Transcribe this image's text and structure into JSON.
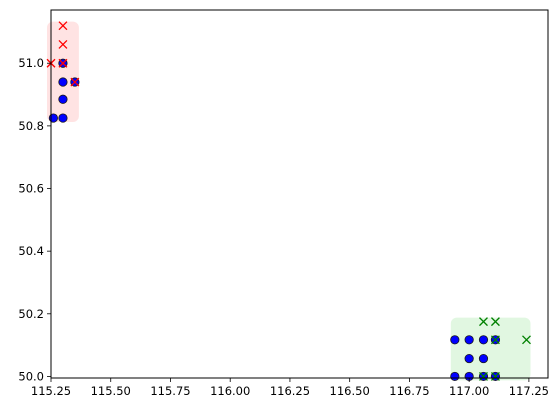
{
  "chart_data": {
    "type": "scatter",
    "title": "",
    "xlabel": "",
    "ylabel": "",
    "xlim": [
      115.25,
      117.33
    ],
    "ylim": [
      49.995,
      51.17
    ],
    "grid": false,
    "x_ticks": [
      115.25,
      115.5,
      115.75,
      116.0,
      116.25,
      116.5,
      116.75,
      117.0,
      117.25
    ],
    "x_tick_labels": [
      "115.25",
      "115.50",
      "115.75",
      "116.00",
      "116.25",
      "116.50",
      "116.75",
      "117.00",
      "117.25"
    ],
    "y_ticks": [
      50.0,
      50.2,
      50.4,
      50.6,
      50.8,
      51.0
    ],
    "y_tick_labels": [
      "50.0",
      "50.2",
      "50.4",
      "50.6",
      "50.8",
      "51.0"
    ],
    "clusters": [
      {
        "color": "#ff0000",
        "x_marker_color": "#ff0000",
        "band_color": "#ffcccc",
        "blue_circles": [
          [
            115.26,
            50.825
          ],
          [
            115.3,
            50.825
          ],
          [
            115.3,
            50.885
          ],
          [
            115.3,
            50.94
          ],
          [
            115.35,
            50.94
          ],
          [
            115.3,
            51.0
          ]
        ],
        "x_markers": [
          [
            115.25,
            51.0
          ],
          [
            115.3,
            51.0
          ],
          [
            115.3,
            51.06
          ],
          [
            115.3,
            51.12
          ],
          [
            115.35,
            50.94
          ]
        ]
      },
      {
        "color": "#008000",
        "x_marker_color": "#008000",
        "band_color": "#c8f0c8",
        "blue_circles": [
          [
            116.94,
            50.0
          ],
          [
            117.0,
            50.0
          ],
          [
            117.06,
            50.0
          ],
          [
            117.11,
            50.0
          ],
          [
            117.0,
            50.057
          ],
          [
            117.06,
            50.057
          ],
          [
            116.94,
            50.117
          ],
          [
            117.0,
            50.117
          ],
          [
            117.06,
            50.117
          ],
          [
            117.11,
            50.117
          ]
        ],
        "x_markers": [
          [
            117.06,
            50.175
          ],
          [
            117.11,
            50.175
          ],
          [
            117.24,
            50.117
          ],
          [
            117.11,
            50.117
          ],
          [
            117.06,
            50.0
          ],
          [
            117.11,
            50.0
          ]
        ]
      }
    ]
  }
}
